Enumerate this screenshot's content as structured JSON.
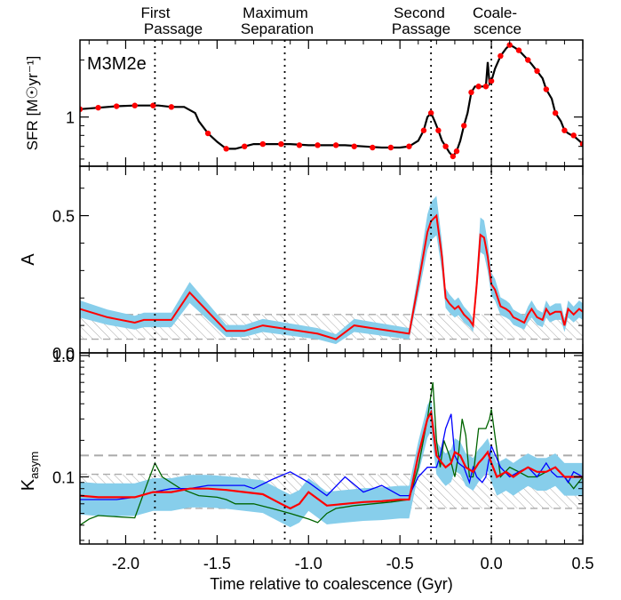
{
  "chart_data": [
    {
      "type": "line",
      "panel": "SFR",
      "annotation": "M3M2e",
      "ylabel": "SFR [M☉yr⁻¹]",
      "yscale": "log",
      "yticks": [
        1
      ],
      "ytick_labels": [
        "1"
      ],
      "xlim": [
        -2.25,
        0.5
      ],
      "series": [
        {
          "color": "#000000",
          "x": [
            -2.25,
            -2.15,
            -2.05,
            -1.95,
            -1.85,
            -1.82,
            -1.75,
            -1.68,
            -1.62,
            -1.6,
            -1.55,
            -1.5,
            -1.45,
            -1.4,
            -1.35,
            -1.3,
            -1.25,
            -1.2,
            -1.1,
            -1.0,
            -0.9,
            -0.8,
            -0.7,
            -0.6,
            -0.5,
            -0.45,
            -0.4,
            -0.37,
            -0.35,
            -0.33,
            -0.31,
            -0.29,
            -0.27,
            -0.25,
            -0.23,
            -0.21,
            -0.19,
            -0.17,
            -0.15,
            -0.13,
            -0.11,
            -0.09,
            -0.07,
            -0.05,
            -0.03,
            -0.02,
            -0.01,
            0.0,
            0.02,
            0.05,
            0.08,
            0.1,
            0.12,
            0.15,
            0.18,
            0.2,
            0.22,
            0.25,
            0.28,
            0.3,
            0.33,
            0.35,
            0.38,
            0.4,
            0.42,
            0.44,
            0.46,
            0.48,
            0.5
          ],
          "values": [
            1.1,
            1.12,
            1.14,
            1.15,
            1.15,
            1.15,
            1.13,
            1.13,
            1.05,
            0.95,
            0.82,
            0.74,
            0.68,
            0.68,
            0.7,
            0.72,
            0.72,
            0.72,
            0.72,
            0.71,
            0.71,
            0.71,
            0.7,
            0.69,
            0.69,
            0.7,
            0.75,
            0.85,
            1.0,
            1.05,
            0.95,
            0.85,
            0.75,
            0.7,
            0.65,
            0.62,
            0.66,
            0.75,
            0.9,
            1.05,
            1.35,
            1.45,
            1.45,
            1.45,
            1.45,
            1.95,
            1.5,
            1.55,
            1.8,
            2.1,
            2.3,
            2.4,
            2.35,
            2.25,
            2.1,
            2.0,
            1.9,
            1.75,
            1.6,
            1.4,
            1.25,
            1.05,
            0.95,
            0.85,
            0.82,
            0.8,
            0.78,
            0.75,
            0.72
          ]
        },
        {
          "color": "#ff0000",
          "marker": "dot",
          "x": [
            -2.25,
            -2.15,
            -2.05,
            -1.95,
            -1.85,
            -1.75,
            -1.55,
            -1.45,
            -1.35,
            -1.25,
            -1.15,
            -1.05,
            -0.95,
            -0.85,
            -0.75,
            -0.65,
            -0.55,
            -0.45,
            -0.37,
            -0.33,
            -0.29,
            -0.25,
            -0.21,
            -0.19,
            -0.15,
            -0.11,
            -0.07,
            -0.03,
            0.0,
            0.05,
            0.1,
            0.15,
            0.2,
            0.25,
            0.3,
            0.35,
            0.4,
            0.45,
            0.5
          ],
          "values": [
            1.1,
            1.12,
            1.14,
            1.15,
            1.15,
            1.13,
            0.82,
            0.68,
            0.7,
            0.72,
            0.72,
            0.71,
            0.71,
            0.71,
            0.7,
            0.69,
            0.69,
            0.7,
            0.85,
            1.05,
            0.85,
            0.7,
            0.62,
            0.66,
            0.9,
            1.35,
            1.45,
            1.45,
            1.55,
            2.1,
            2.4,
            2.25,
            2.0,
            1.75,
            1.4,
            1.05,
            0.85,
            0.8,
            0.72
          ]
        }
      ]
    },
    {
      "type": "line",
      "panel": "A",
      "ylabel": "A",
      "ylim": [
        0.0,
        0.68
      ],
      "yticks": [
        0.0,
        0.5
      ],
      "ytick_labels": [
        "0.0",
        "0.5"
      ],
      "xlim": [
        -2.25,
        0.5
      ],
      "hatched_band": [
        0.05,
        0.14
      ],
      "series": [
        {
          "color": "#ff0000",
          "x": [
            -2.25,
            -2.1,
            -1.95,
            -1.9,
            -1.85,
            -1.75,
            -1.65,
            -1.55,
            -1.45,
            -1.35,
            -1.25,
            -1.15,
            -1.05,
            -0.95,
            -0.85,
            -0.75,
            -0.65,
            -0.55,
            -0.45,
            -0.4,
            -0.35,
            -0.33,
            -0.3,
            -0.27,
            -0.25,
            -0.23,
            -0.2,
            -0.18,
            -0.15,
            -0.12,
            -0.1,
            -0.08,
            -0.06,
            -0.04,
            -0.02,
            0.0,
            0.02,
            0.05,
            0.08,
            0.1,
            0.12,
            0.15,
            0.18,
            0.2,
            0.22,
            0.25,
            0.28,
            0.3,
            0.32,
            0.35,
            0.38,
            0.4,
            0.42,
            0.45,
            0.48,
            0.5
          ],
          "values": [
            0.16,
            0.13,
            0.11,
            0.12,
            0.12,
            0.12,
            0.22,
            0.15,
            0.08,
            0.08,
            0.1,
            0.09,
            0.08,
            0.07,
            0.05,
            0.1,
            0.09,
            0.08,
            0.07,
            0.25,
            0.44,
            0.48,
            0.5,
            0.35,
            0.2,
            0.18,
            0.16,
            0.17,
            0.14,
            0.12,
            0.1,
            0.25,
            0.43,
            0.42,
            0.35,
            0.25,
            0.23,
            0.17,
            0.16,
            0.15,
            0.13,
            0.12,
            0.11,
            0.14,
            0.16,
            0.13,
            0.12,
            0.16,
            0.14,
            0.15,
            0.15,
            0.1,
            0.16,
            0.14,
            0.16,
            0.15
          ]
        }
      ]
    },
    {
      "type": "line",
      "panel": "Kasym",
      "ylabel": "Kasym",
      "yscale": "log",
      "ylim": [
        0.028,
        1.05
      ],
      "yticks": [
        0.1,
        1.0
      ],
      "ytick_labels": [
        "0.1",
        "1.0"
      ],
      "xlim": [
        -2.25,
        0.5
      ],
      "xticks": [
        -2.0,
        -1.5,
        -1.0,
        -0.5,
        0.0,
        0.5
      ],
      "xtick_labels": [
        "-2.0",
        "-1.5",
        "-1.0",
        "-0.5",
        "0.0",
        "0.5"
      ],
      "xlabel": "Time relative to coalescence (Gyr)",
      "dashed_line": 0.15,
      "hatched_band": [
        0.055,
        0.105
      ],
      "series": [
        {
          "color": "#006400",
          "x": [
            -2.25,
            -2.2,
            -2.15,
            -2.05,
            -1.95,
            -1.88,
            -1.84,
            -1.8,
            -1.7,
            -1.6,
            -1.5,
            -1.45,
            -1.4,
            -1.3,
            -1.2,
            -1.1,
            -1.0,
            -0.95,
            -0.9,
            -0.85,
            -0.75,
            -0.65,
            -0.55,
            -0.45,
            -0.4,
            -0.35,
            -0.32,
            -0.3,
            -0.28,
            -0.26,
            -0.23,
            -0.2,
            -0.18,
            -0.16,
            -0.14,
            -0.12,
            -0.1,
            -0.07,
            -0.05,
            -0.03,
            -0.01,
            0.0,
            0.05,
            0.1,
            0.15,
            0.2,
            0.25,
            0.3,
            0.35,
            0.4,
            0.45,
            0.5
          ],
          "values": [
            0.04,
            0.045,
            0.048,
            0.047,
            0.046,
            0.09,
            0.13,
            0.1,
            0.08,
            0.07,
            0.068,
            0.065,
            0.06,
            0.06,
            0.055,
            0.05,
            0.045,
            0.042,
            0.05,
            0.055,
            0.058,
            0.06,
            0.062,
            0.065,
            0.12,
            0.3,
            0.6,
            0.2,
            0.12,
            0.2,
            0.15,
            0.1,
            0.15,
            0.3,
            0.22,
            0.1,
            0.1,
            0.25,
            0.25,
            0.25,
            0.3,
            0.36,
            0.1,
            0.12,
            0.11,
            0.1,
            0.1,
            0.11,
            0.12,
            0.1,
            0.08,
            0.1
          ]
        },
        {
          "color": "#0000ff",
          "x": [
            -2.25,
            -2.15,
            -2.05,
            -1.95,
            -1.85,
            -1.75,
            -1.65,
            -1.55,
            -1.45,
            -1.35,
            -1.3,
            -1.2,
            -1.1,
            -1.0,
            -0.9,
            -0.8,
            -0.7,
            -0.6,
            -0.5,
            -0.45,
            -0.4,
            -0.35,
            -0.3,
            -0.28,
            -0.25,
            -0.22,
            -0.2,
            -0.18,
            -0.15,
            -0.12,
            -0.1,
            -0.08,
            -0.05,
            -0.03,
            0.0,
            0.05,
            0.1,
            0.15,
            0.2,
            0.25,
            0.3,
            0.33,
            0.36,
            0.4,
            0.42,
            0.45,
            0.5
          ],
          "values": [
            0.065,
            0.065,
            0.065,
            0.068,
            0.075,
            0.08,
            0.08,
            0.085,
            0.085,
            0.085,
            0.08,
            0.095,
            0.11,
            0.09,
            0.07,
            0.1,
            0.075,
            0.085,
            0.07,
            0.07,
            0.1,
            0.12,
            0.12,
            0.15,
            0.25,
            0.33,
            0.15,
            0.13,
            0.12,
            0.09,
            0.12,
            0.1,
            0.09,
            0.1,
            0.18,
            0.12,
            0.1,
            0.11,
            0.12,
            0.1,
            0.13,
            0.11,
            0.1,
            0.1,
            0.09,
            0.11,
            0.1
          ]
        },
        {
          "color": "#ff0000",
          "x": [
            -2.25,
            -2.15,
            -2.05,
            -1.95,
            -1.85,
            -1.75,
            -1.65,
            -1.55,
            -1.45,
            -1.35,
            -1.25,
            -1.15,
            -1.1,
            -1.05,
            -1.0,
            -0.9,
            -0.8,
            -0.7,
            -0.6,
            -0.5,
            -0.45,
            -0.4,
            -0.35,
            -0.33,
            -0.3,
            -0.27,
            -0.25,
            -0.22,
            -0.2,
            -0.17,
            -0.14,
            -0.1,
            -0.07,
            -0.05,
            -0.02,
            0.0,
            0.03,
            0.08,
            0.12,
            0.16,
            0.2,
            0.25,
            0.3,
            0.35,
            0.4,
            0.45,
            0.5
          ],
          "values": [
            0.07,
            0.068,
            0.068,
            0.068,
            0.075,
            0.075,
            0.08,
            0.08,
            0.078,
            0.075,
            0.072,
            0.06,
            0.055,
            0.06,
            0.075,
            0.058,
            0.06,
            0.062,
            0.063,
            0.065,
            0.065,
            0.15,
            0.3,
            0.34,
            0.15,
            0.13,
            0.12,
            0.13,
            0.16,
            0.15,
            0.12,
            0.11,
            0.13,
            0.14,
            0.16,
            0.13,
            0.1,
            0.11,
            0.1,
            0.11,
            0.12,
            0.11,
            0.11,
            0.12,
            0.1,
            0.1,
            0.1
          ]
        }
      ]
    }
  ],
  "event_labels": [
    {
      "lines": [
        "First",
        "Passage"
      ],
      "x": -1.84
    },
    {
      "lines": [
        "Maximum",
        "Separation"
      ],
      "x": -1.13
    },
    {
      "lines": [
        "Second",
        "Passage"
      ],
      "x": -0.33
    },
    {
      "lines": [
        "Coale-",
        "scence"
      ],
      "x": 0.0
    }
  ],
  "colors": {
    "error_band": "#87CEEB",
    "hatch": "#aaaaaa",
    "dashed": "#aaaaaa"
  }
}
